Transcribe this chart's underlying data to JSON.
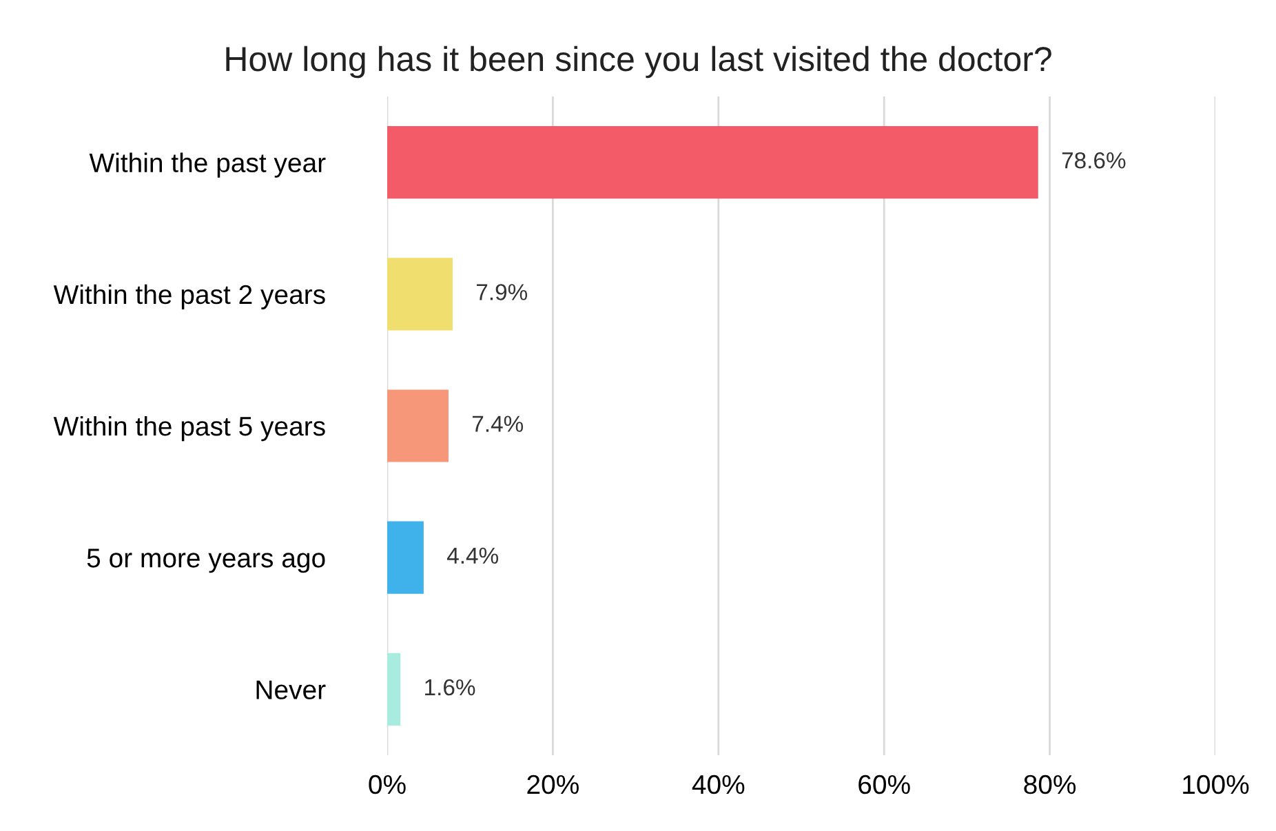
{
  "chart_data": {
    "type": "bar",
    "orientation": "horizontal",
    "title": "How long has it been since you last visited the doctor?",
    "categories": [
      "Within the past year",
      "Within the past 2 years",
      "Within the past 5 years",
      "5 or more years ago",
      "Never"
    ],
    "values": [
      78.6,
      7.9,
      7.4,
      4.4,
      1.6
    ],
    "colors": [
      "#f45b69",
      "#f0de6e",
      "#f7977a",
      "#3fb2ec",
      "#a8ecdf"
    ],
    "value_labels": [
      "78.6%",
      "7.9%",
      "7.4%",
      "4.4%",
      "1.6%"
    ],
    "xlim": [
      0,
      100
    ],
    "xticks": [
      {
        "value": 0,
        "label": "0%"
      },
      {
        "value": 20,
        "label": "20%"
      },
      {
        "value": 40,
        "label": "40%"
      },
      {
        "value": 60,
        "label": "60%"
      },
      {
        "value": 80,
        "label": "80%"
      },
      {
        "value": 100,
        "label": "100%"
      }
    ],
    "grid": "x",
    "legend": false
  }
}
